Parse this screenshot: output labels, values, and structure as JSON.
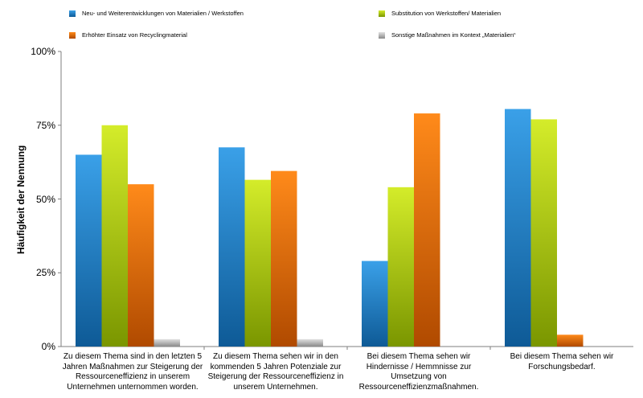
{
  "chart_data": {
    "type": "bar",
    "title": "",
    "xlabel": "",
    "ylabel": "Häufigkeit der Nennung",
    "ylim": [
      0,
      100
    ],
    "yticks": [
      "0%",
      "25%",
      "50%",
      "75%",
      "100%"
    ],
    "grid": false,
    "legend_position": "top",
    "categories": [
      "Zu diesem Thema sind in den letzten 5 Jahren Maßnahmen zur Steigerung der Ressourceneffizienz in unserem Unternehmen unternommen worden.",
      "Zu diesem Thema sehen wir in den kommenden 5 Jahren Potenziale zur Steigerung der Ressourceneffizienz in unserem Unternehmen.",
      "Bei diesem Thema sehen wir Hindernisse / Hemmnisse zur Umsetzung von Ressourceneffizienzmaßnahmen.",
      "Bei diesem Thema sehen wir Forschungsbedarf."
    ],
    "series": [
      {
        "name": "Neu- und Weiterentwicklungen von Materialien / Werkstoffen",
        "color": "#1a7cc4",
        "values": [
          65,
          67.5,
          29,
          80.5
        ]
      },
      {
        "name": "Substitution von Werkstoffen/ Materialien",
        "color": "#a8c800",
        "values": [
          75,
          56.5,
          54,
          77
        ]
      },
      {
        "name": "Erhöhter Einsatz von Recyclingmaterial",
        "color": "#f06a00",
        "values": [
          55,
          59.5,
          79,
          4
        ]
      },
      {
        "name": "Sonstige Maßnahmen im Kontext „Materialien“",
        "color": "#b8b8b8",
        "values": [
          2.5,
          2.5,
          0,
          0
        ]
      }
    ]
  }
}
